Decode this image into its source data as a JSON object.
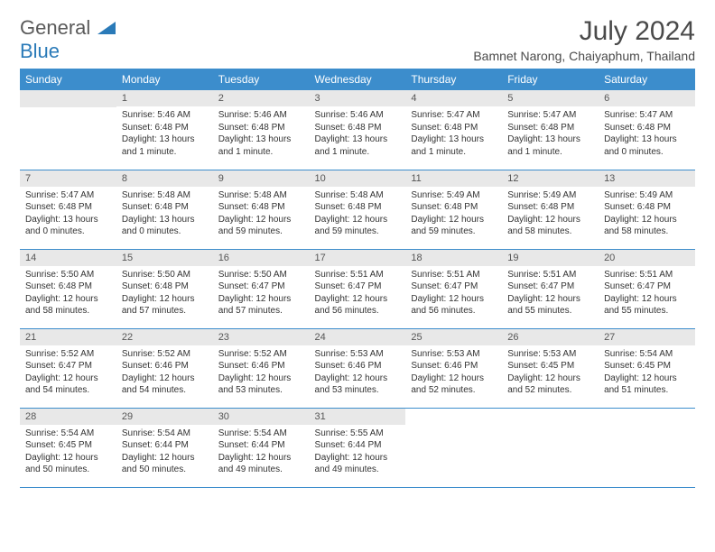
{
  "logo": {
    "part1": "General",
    "part2": "Blue"
  },
  "title": "July 2024",
  "location": "Bamnet Narong, Chaiyaphum, Thailand",
  "colors": {
    "header_bg": "#3c8dcc",
    "header_text": "#ffffff",
    "daynum_bg": "#e8e8e8",
    "text": "#333333",
    "logo_gray": "#5a5a5a",
    "logo_blue": "#2a7ab8"
  },
  "weekdays": [
    "Sunday",
    "Monday",
    "Tuesday",
    "Wednesday",
    "Thursday",
    "Friday",
    "Saturday"
  ],
  "start_weekday": 1,
  "days": [
    {
      "n": 1,
      "sunrise": "5:46 AM",
      "sunset": "6:48 PM",
      "daylight": "13 hours and 1 minute."
    },
    {
      "n": 2,
      "sunrise": "5:46 AM",
      "sunset": "6:48 PM",
      "daylight": "13 hours and 1 minute."
    },
    {
      "n": 3,
      "sunrise": "5:46 AM",
      "sunset": "6:48 PM",
      "daylight": "13 hours and 1 minute."
    },
    {
      "n": 4,
      "sunrise": "5:47 AM",
      "sunset": "6:48 PM",
      "daylight": "13 hours and 1 minute."
    },
    {
      "n": 5,
      "sunrise": "5:47 AM",
      "sunset": "6:48 PM",
      "daylight": "13 hours and 1 minute."
    },
    {
      "n": 6,
      "sunrise": "5:47 AM",
      "sunset": "6:48 PM",
      "daylight": "13 hours and 0 minutes."
    },
    {
      "n": 7,
      "sunrise": "5:47 AM",
      "sunset": "6:48 PM",
      "daylight": "13 hours and 0 minutes."
    },
    {
      "n": 8,
      "sunrise": "5:48 AM",
      "sunset": "6:48 PM",
      "daylight": "13 hours and 0 minutes."
    },
    {
      "n": 9,
      "sunrise": "5:48 AM",
      "sunset": "6:48 PM",
      "daylight": "12 hours and 59 minutes."
    },
    {
      "n": 10,
      "sunrise": "5:48 AM",
      "sunset": "6:48 PM",
      "daylight": "12 hours and 59 minutes."
    },
    {
      "n": 11,
      "sunrise": "5:49 AM",
      "sunset": "6:48 PM",
      "daylight": "12 hours and 59 minutes."
    },
    {
      "n": 12,
      "sunrise": "5:49 AM",
      "sunset": "6:48 PM",
      "daylight": "12 hours and 58 minutes."
    },
    {
      "n": 13,
      "sunrise": "5:49 AM",
      "sunset": "6:48 PM",
      "daylight": "12 hours and 58 minutes."
    },
    {
      "n": 14,
      "sunrise": "5:50 AM",
      "sunset": "6:48 PM",
      "daylight": "12 hours and 58 minutes."
    },
    {
      "n": 15,
      "sunrise": "5:50 AM",
      "sunset": "6:48 PM",
      "daylight": "12 hours and 57 minutes."
    },
    {
      "n": 16,
      "sunrise": "5:50 AM",
      "sunset": "6:47 PM",
      "daylight": "12 hours and 57 minutes."
    },
    {
      "n": 17,
      "sunrise": "5:51 AM",
      "sunset": "6:47 PM",
      "daylight": "12 hours and 56 minutes."
    },
    {
      "n": 18,
      "sunrise": "5:51 AM",
      "sunset": "6:47 PM",
      "daylight": "12 hours and 56 minutes."
    },
    {
      "n": 19,
      "sunrise": "5:51 AM",
      "sunset": "6:47 PM",
      "daylight": "12 hours and 55 minutes."
    },
    {
      "n": 20,
      "sunrise": "5:51 AM",
      "sunset": "6:47 PM",
      "daylight": "12 hours and 55 minutes."
    },
    {
      "n": 21,
      "sunrise": "5:52 AM",
      "sunset": "6:47 PM",
      "daylight": "12 hours and 54 minutes."
    },
    {
      "n": 22,
      "sunrise": "5:52 AM",
      "sunset": "6:46 PM",
      "daylight": "12 hours and 54 minutes."
    },
    {
      "n": 23,
      "sunrise": "5:52 AM",
      "sunset": "6:46 PM",
      "daylight": "12 hours and 53 minutes."
    },
    {
      "n": 24,
      "sunrise": "5:53 AM",
      "sunset": "6:46 PM",
      "daylight": "12 hours and 53 minutes."
    },
    {
      "n": 25,
      "sunrise": "5:53 AM",
      "sunset": "6:46 PM",
      "daylight": "12 hours and 52 minutes."
    },
    {
      "n": 26,
      "sunrise": "5:53 AM",
      "sunset": "6:45 PM",
      "daylight": "12 hours and 52 minutes."
    },
    {
      "n": 27,
      "sunrise": "5:54 AM",
      "sunset": "6:45 PM",
      "daylight": "12 hours and 51 minutes."
    },
    {
      "n": 28,
      "sunrise": "5:54 AM",
      "sunset": "6:45 PM",
      "daylight": "12 hours and 50 minutes."
    },
    {
      "n": 29,
      "sunrise": "5:54 AM",
      "sunset": "6:44 PM",
      "daylight": "12 hours and 50 minutes."
    },
    {
      "n": 30,
      "sunrise": "5:54 AM",
      "sunset": "6:44 PM",
      "daylight": "12 hours and 49 minutes."
    },
    {
      "n": 31,
      "sunrise": "5:55 AM",
      "sunset": "6:44 PM",
      "daylight": "12 hours and 49 minutes."
    }
  ],
  "labels": {
    "sunrise_prefix": "Sunrise: ",
    "sunset_prefix": "Sunset: ",
    "daylight_prefix": "Daylight: "
  }
}
